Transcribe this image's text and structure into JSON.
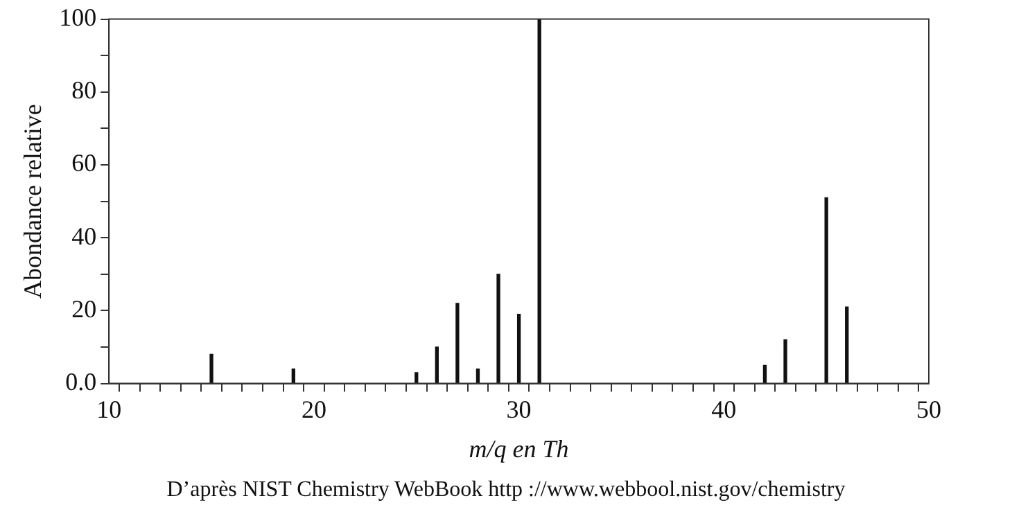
{
  "chart_data": {
    "type": "bar",
    "xlabel": "m/q en Th",
    "ylabel": "Abondance relative",
    "categories": [
      "10",
      null,
      null,
      null,
      null,
      null,
      null,
      null,
      null,
      null,
      "20",
      null,
      null,
      null,
      null,
      null,
      null,
      null,
      null,
      null,
      "30",
      null,
      null,
      null,
      null,
      null,
      null,
      null,
      null,
      null,
      "40",
      null,
      null,
      null,
      null,
      null,
      null,
      null,
      null,
      null,
      "50"
    ],
    "values": [
      null,
      null,
      null,
      null,
      null,
      8,
      null,
      null,
      null,
      4,
      null,
      null,
      null,
      null,
      null,
      3,
      10,
      22,
      4,
      30,
      19,
      100,
      null,
      null,
      null,
      null,
      null,
      null,
      null,
      null,
      null,
      null,
      5,
      12,
      null,
      51,
      21,
      null,
      null,
      null,
      null
    ],
    "color": "#111111",
    "ylim": [
      0,
      100
    ],
    "yticks": [
      {
        "value": 0,
        "label": "0.0"
      },
      {
        "value": 10,
        "label": null
      },
      20,
      {
        "value": 30,
        "label": null
      },
      40,
      {
        "value": 50,
        "label": null
      },
      60,
      {
        "value": 70,
        "label": null
      },
      80,
      {
        "value": 90,
        "label": null
      },
      100
    ],
    "grid": false,
    "legend": false,
    "annotations": [
      "D’après NIST Chemistry WebBook http ://www.webbool.nist.gov/chemistry"
    ]
  }
}
